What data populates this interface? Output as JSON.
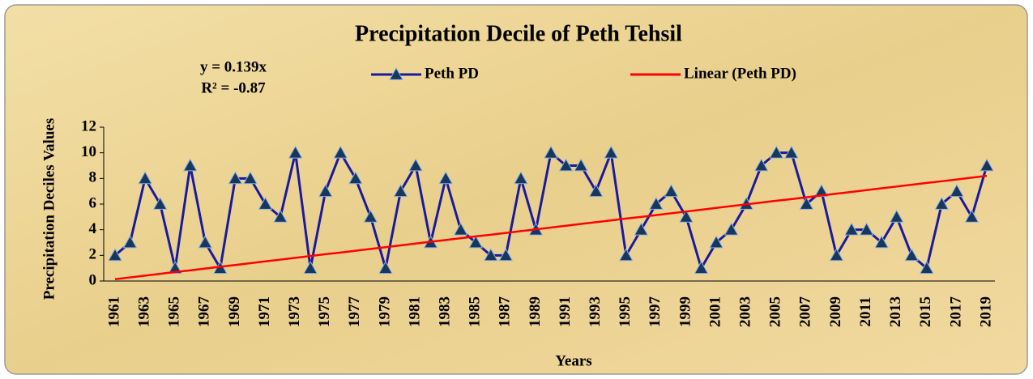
{
  "chart_data": {
    "type": "line",
    "title": "Precipitation Decile of Peth Tehsil",
    "annotations": [
      "y = 0.139x",
      "R² = -0.87"
    ],
    "x_label": "Years",
    "y_label": "Precipitation Deciles Values",
    "categories": [
      "1961",
      null,
      "1963",
      null,
      "1965",
      null,
      "1967",
      null,
      "1969",
      null,
      "1971",
      null,
      "1973",
      null,
      "1975",
      null,
      "1977",
      null,
      "1979",
      null,
      "1981",
      null,
      "1983",
      null,
      "1985",
      null,
      "1987",
      null,
      "1989",
      null,
      "1991",
      null,
      "1993",
      null,
      "1995",
      null,
      "1997",
      null,
      "1999",
      null,
      "2001",
      null,
      "2003",
      null,
      "2005",
      null,
      "2007",
      null,
      "2009",
      null,
      "2011",
      null,
      "2013",
      null,
      "2015",
      null,
      "2017",
      null,
      "2019"
    ],
    "series": [
      {
        "name": "Peth PD",
        "color": "#1a1a9e",
        "marker": "triangle",
        "values": [
          2,
          3,
          8,
          6,
          1,
          9,
          3,
          1,
          8,
          8,
          6,
          5,
          10,
          1,
          7,
          10,
          8,
          5,
          1,
          7,
          9,
          3,
          8,
          4,
          3,
          2,
          2,
          8,
          4,
          10,
          9,
          9,
          7,
          10,
          2,
          4,
          6,
          7,
          5,
          1,
          3,
          4,
          6,
          9,
          10,
          10,
          6,
          7,
          2,
          4,
          4,
          3,
          5,
          2,
          1,
          6,
          7,
          5,
          9
        ]
      },
      {
        "name": "Linear (Peth PD)",
        "color": "#ff0000",
        "values": [
          0.14,
          0.28,
          0.42,
          0.56,
          0.7,
          0.83,
          0.97,
          1.11,
          1.25,
          1.39,
          1.53,
          1.67,
          1.81,
          1.95,
          2.09,
          2.22,
          2.36,
          2.5,
          2.64,
          2.78,
          2.92,
          3.06,
          3.2,
          3.34,
          3.48,
          3.61,
          3.75,
          3.89,
          4.03,
          4.17,
          4.31,
          4.45,
          4.59,
          4.73,
          4.87,
          5,
          5.14,
          5.28,
          5.42,
          5.56,
          5.7,
          5.84,
          5.98,
          6.12,
          6.26,
          6.39,
          6.53,
          6.67,
          6.81,
          6.95,
          7.09,
          7.23,
          7.37,
          7.51,
          7.65,
          7.78,
          7.92,
          8.06,
          8.2
        ]
      }
    ],
    "ylim": [
      0,
      12
    ],
    "yticks": [
      0,
      2,
      4,
      6,
      8,
      10,
      12
    ]
  }
}
